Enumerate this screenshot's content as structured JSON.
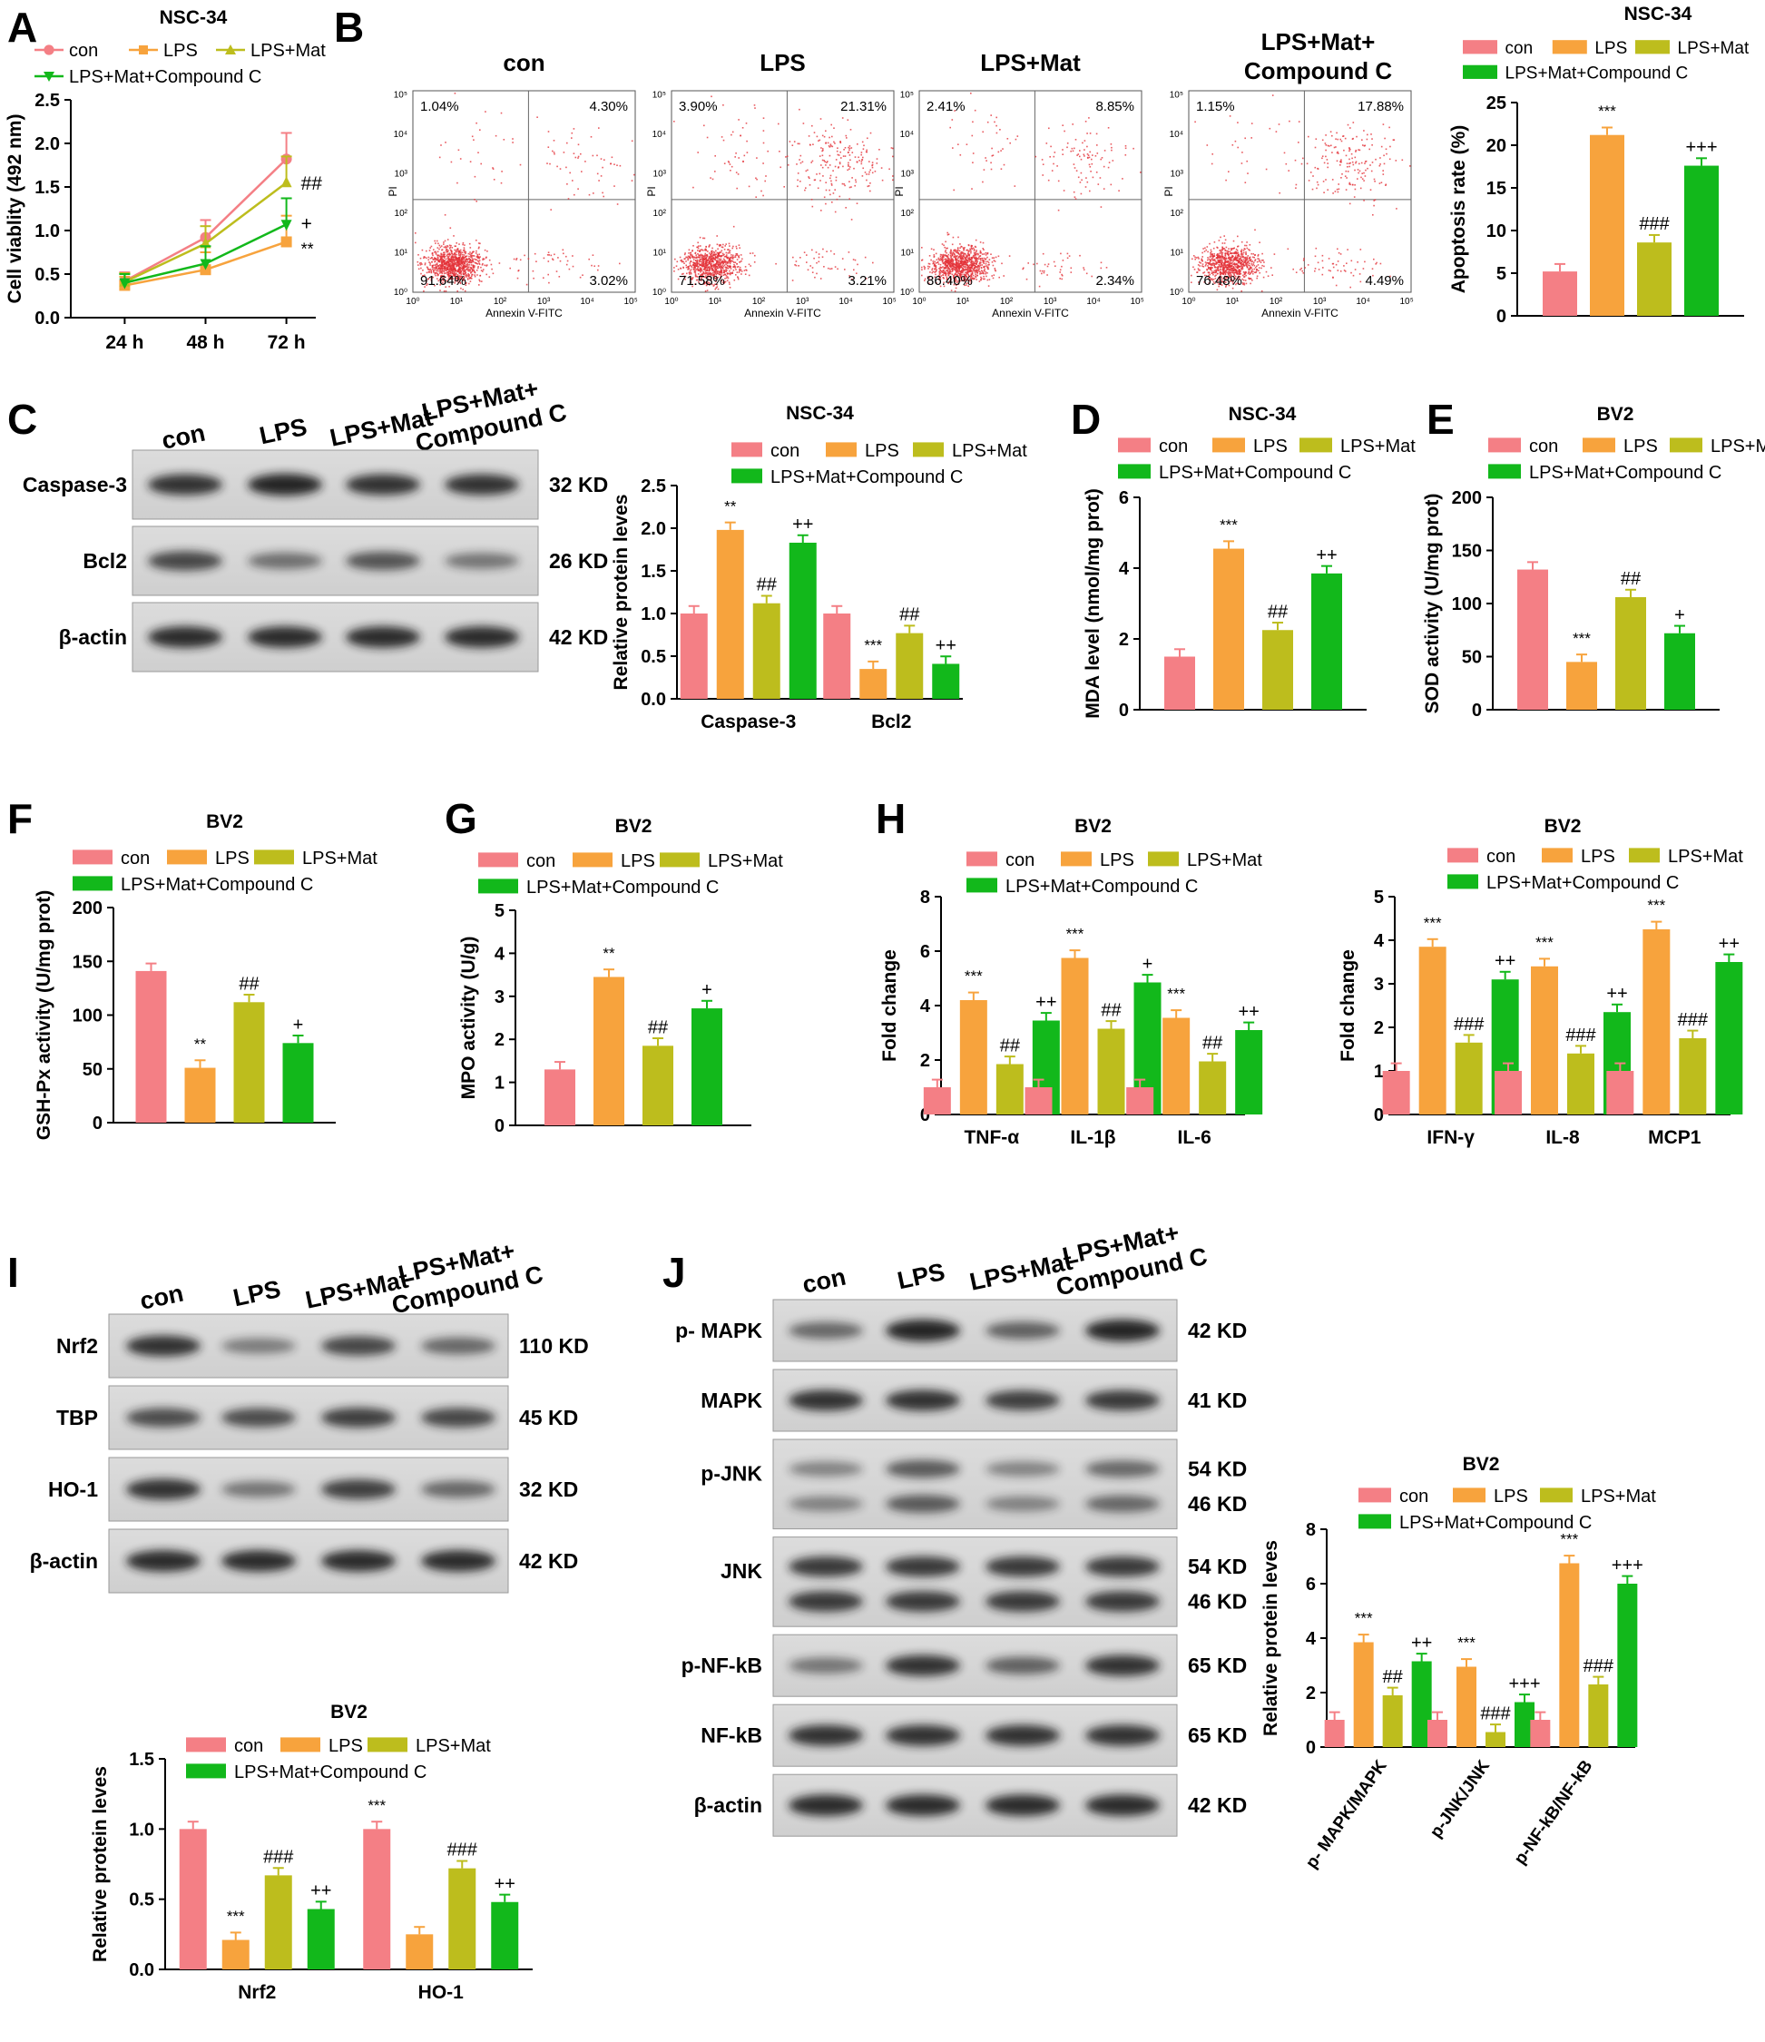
{
  "colors": {
    "con": "#f47f85",
    "LPS": "#f7a33d",
    "LPS+Mat": "#bdbd1d",
    "LPS+Mat+Compound C": "#12b81b",
    "err": "#f2b3b3"
  },
  "legend_labels": [
    "con",
    "LPS",
    "LPS+Mat",
    "LPS+Mat+Compound C"
  ],
  "panel_labels": [
    "A",
    "B",
    "C",
    "D",
    "E",
    "F",
    "G",
    "H",
    "I",
    "J"
  ],
  "flow": {
    "titles": [
      "con",
      "LPS",
      "LPS+Mat",
      "LPS+Mat+\nCompound C"
    ],
    "x_axis_label": "Annexin V-FITC",
    "y_axis_label": "PI",
    "tick_labels": [
      "10⁰",
      "10¹",
      "10²",
      "10³",
      "10⁴",
      "10⁵"
    ],
    "quadrants": [
      [
        "1.04%",
        "4.30%",
        "91.64%",
        "3.02%"
      ],
      [
        "3.90%",
        "21.31%",
        "71.58%",
        "3.21%"
      ],
      [
        "2.41%",
        "8.85%",
        "86.40%",
        "2.34%"
      ],
      [
        "1.15%",
        "17.88%",
        "76.48%",
        "4.49%"
      ]
    ]
  },
  "blots": {
    "C": {
      "lanes": [
        "con",
        "LPS",
        "LPS+Mat",
        "LPS+Mat+\nCompound C"
      ],
      "rows": [
        {
          "name": "Caspase-3",
          "kd": "32 KD"
        },
        {
          "name": "Bcl2",
          "kd": "26 KD"
        },
        {
          "name": "β-actin",
          "kd": "42 KD"
        }
      ]
    },
    "I": {
      "lanes": [
        "con",
        "LPS",
        "LPS+Mat",
        "LPS+Mat+\nCompound C"
      ],
      "rows": [
        {
          "name": "Nrf2",
          "kd": "110 KD"
        },
        {
          "name": "TBP",
          "kd": "45 KD"
        },
        {
          "name": "HO-1",
          "kd": "32 KD"
        },
        {
          "name": "β-actin",
          "kd": "42 KD"
        }
      ]
    },
    "J": {
      "lanes": [
        "con",
        "LPS",
        "LPS+Mat",
        "LPS+Mat+\nCompound C"
      ],
      "rows": [
        {
          "name": "p- MAPK",
          "kd": "42 KD"
        },
        {
          "name": "MAPK",
          "kd": "41 KD"
        },
        {
          "name": "p-JNK",
          "kd": "54 KD",
          "kd2": "46 KD"
        },
        {
          "name": "JNK",
          "kd": "54 KD",
          "kd2": "46 KD"
        },
        {
          "name": "p-NF-kB",
          "kd": "65 KD"
        },
        {
          "name": "NF-kB",
          "kd": "65 KD"
        },
        {
          "name": "β-actin",
          "kd": "42 KD"
        }
      ]
    }
  },
  "chart_data": [
    {
      "id": "A",
      "type": "line",
      "title": "NSC-34",
      "ylabel": "Cell viablity (492 nm)",
      "xlabel": "",
      "categories": [
        "24 h",
        "48 h",
        "72 h"
      ],
      "ylim": [
        0,
        2.5
      ],
      "yticks": [
        0,
        0.5,
        1.0,
        1.5,
        2.0,
        2.5
      ],
      "series": [
        {
          "name": "con",
          "values": [
            0.42,
            0.92,
            1.82
          ]
        },
        {
          "name": "LPS",
          "values": [
            0.37,
            0.55,
            0.87
          ]
        },
        {
          "name": "LPS+Mat",
          "values": [
            0.41,
            0.85,
            1.55
          ]
        },
        {
          "name": "LPS+Mat+Compound C",
          "values": [
            0.4,
            0.62,
            1.07
          ]
        }
      ],
      "annotations": [
        "##",
        "+",
        "**"
      ],
      "legend": "top-left"
    },
    {
      "id": "B",
      "type": "bar",
      "title": "NSC-34",
      "ylabel": "Apoptosis rate (%)",
      "xlabel": "",
      "categories": [
        ""
      ],
      "ylim": [
        0,
        25
      ],
      "yticks": [
        0,
        5,
        10,
        15,
        20,
        25
      ],
      "series": [
        {
          "name": "con",
          "values": [
            5.2
          ]
        },
        {
          "name": "LPS",
          "values": [
            21.2
          ]
        },
        {
          "name": "LPS+Mat",
          "values": [
            8.6
          ]
        },
        {
          "name": "LPS+Mat+Compound C",
          "values": [
            17.6
          ]
        }
      ],
      "annotations": [
        [
          "",
          "***",
          "###",
          "+++"
        ]
      ]
    },
    {
      "id": "C",
      "type": "bar",
      "title": "NSC-34",
      "ylabel": "Relative protein leves",
      "xlabel": "",
      "categories": [
        "Caspase-3",
        "Bcl2"
      ],
      "ylim": [
        0,
        2.5
      ],
      "yticks": [
        0,
        0.5,
        1.0,
        1.5,
        2.0,
        2.5
      ],
      "series": [
        {
          "name": "con",
          "values": [
            1.0,
            1.0
          ]
        },
        {
          "name": "LPS",
          "values": [
            1.98,
            0.35
          ]
        },
        {
          "name": "LPS+Mat",
          "values": [
            1.12,
            0.77
          ]
        },
        {
          "name": "LPS+Mat+Compound C",
          "values": [
            1.83,
            0.41
          ]
        }
      ],
      "annotations": [
        [
          "",
          "**",
          "##",
          "++"
        ],
        [
          "",
          "***",
          "##",
          "++"
        ]
      ]
    },
    {
      "id": "D",
      "type": "bar",
      "title": "NSC-34",
      "ylabel": "MDA level (nmol/mg prot)",
      "xlabel": "",
      "categories": [
        ""
      ],
      "ylim": [
        0,
        6
      ],
      "yticks": [
        0,
        2,
        4,
        6
      ],
      "series": [
        {
          "name": "con",
          "values": [
            1.5
          ]
        },
        {
          "name": "LPS",
          "values": [
            4.55
          ]
        },
        {
          "name": "LPS+Mat",
          "values": [
            2.25
          ]
        },
        {
          "name": "LPS+Mat+Compound C",
          "values": [
            3.85
          ]
        }
      ],
      "annotations": [
        [
          "",
          "***",
          "##",
          "++"
        ]
      ]
    },
    {
      "id": "E",
      "type": "bar",
      "title": "BV2",
      "ylabel": "SOD activity (U/mg prot)",
      "xlabel": "",
      "categories": [
        ""
      ],
      "ylim": [
        0,
        200
      ],
      "yticks": [
        0,
        50,
        100,
        150,
        200
      ],
      "series": [
        {
          "name": "con",
          "values": [
            132
          ]
        },
        {
          "name": "LPS",
          "values": [
            45
          ]
        },
        {
          "name": "LPS+Mat",
          "values": [
            106
          ]
        },
        {
          "name": "LPS+Mat+Compound C",
          "values": [
            72
          ]
        }
      ],
      "annotations": [
        [
          "",
          "***",
          "##",
          "+"
        ]
      ]
    },
    {
      "id": "F",
      "type": "bar",
      "title": "BV2",
      "ylabel": "GSH-Px activity (U/mg prot)",
      "xlabel": "",
      "categories": [
        ""
      ],
      "ylim": [
        0,
        200
      ],
      "yticks": [
        0,
        50,
        100,
        150,
        200
      ],
      "series": [
        {
          "name": "con",
          "values": [
            141
          ]
        },
        {
          "name": "LPS",
          "values": [
            51
          ]
        },
        {
          "name": "LPS+Mat",
          "values": [
            112
          ]
        },
        {
          "name": "LPS+Mat+Compound C",
          "values": [
            74
          ]
        }
      ],
      "annotations": [
        [
          "",
          "**",
          "##",
          "+"
        ]
      ]
    },
    {
      "id": "G",
      "type": "bar",
      "title": "BV2",
      "ylabel": "MPO activity (U/g)",
      "xlabel": "",
      "categories": [
        ""
      ],
      "ylim": [
        0,
        5
      ],
      "yticks": [
        0,
        1,
        2,
        3,
        4,
        5
      ],
      "series": [
        {
          "name": "con",
          "values": [
            1.3
          ]
        },
        {
          "name": "LPS",
          "values": [
            3.45
          ]
        },
        {
          "name": "LPS+Mat",
          "values": [
            1.85
          ]
        },
        {
          "name": "LPS+Mat+Compound C",
          "values": [
            2.72
          ]
        }
      ],
      "annotations": [
        [
          "",
          "**",
          "##",
          "+"
        ]
      ]
    },
    {
      "id": "H1",
      "type": "bar",
      "title": "BV2",
      "ylabel": "Fold change",
      "xlabel": "",
      "categories": [
        "TNF-α",
        "IL-1β",
        "IL-6"
      ],
      "ylim": [
        0,
        8
      ],
      "yticks": [
        0,
        2,
        4,
        6,
        8
      ],
      "series": [
        {
          "name": "con",
          "values": [
            1.0,
            1.0,
            1.0
          ]
        },
        {
          "name": "LPS",
          "values": [
            4.2,
            5.75,
            3.55
          ]
        },
        {
          "name": "LPS+Mat",
          "values": [
            1.85,
            3.15,
            1.95
          ]
        },
        {
          "name": "LPS+Mat+Compound C",
          "values": [
            3.45,
            4.85,
            3.1
          ]
        }
      ],
      "annotations": [
        [
          "",
          "***",
          "##",
          "++"
        ],
        [
          "",
          "***",
          "##",
          "+"
        ],
        [
          "",
          "***",
          "##",
          "++"
        ]
      ]
    },
    {
      "id": "H2",
      "type": "bar",
      "title": "BV2",
      "ylabel": "Fold change",
      "xlabel": "",
      "categories": [
        "IFN-γ",
        "IL-8",
        "MCP1"
      ],
      "ylim": [
        0,
        5
      ],
      "yticks": [
        0,
        1,
        2,
        3,
        4,
        5
      ],
      "series": [
        {
          "name": "con",
          "values": [
            1.0,
            1.0,
            1.0
          ]
        },
        {
          "name": "LPS",
          "values": [
            3.85,
            3.4,
            4.25
          ]
        },
        {
          "name": "LPS+Mat",
          "values": [
            1.65,
            1.4,
            1.75
          ]
        },
        {
          "name": "LPS+Mat+Compound C",
          "values": [
            3.1,
            2.35,
            3.5
          ]
        }
      ],
      "annotations": [
        [
          "",
          "***",
          "###",
          "++"
        ],
        [
          "",
          "***",
          "###",
          "++"
        ],
        [
          "",
          "***",
          "###",
          "++"
        ]
      ]
    },
    {
      "id": "I",
      "type": "bar",
      "title": "BV2",
      "ylabel": "Relative protein leves",
      "xlabel": "",
      "categories": [
        "Nrf2",
        "HO-1"
      ],
      "ylim": [
        0,
        1.5
      ],
      "yticks": [
        0,
        0.5,
        1.0,
        1.5
      ],
      "series": [
        {
          "name": "con",
          "values": [
            1.0,
            1.0
          ]
        },
        {
          "name": "LPS",
          "values": [
            0.21,
            0.25
          ]
        },
        {
          "name": "LPS+Mat",
          "values": [
            0.67,
            0.72
          ]
        },
        {
          "name": "LPS+Mat+Compound C",
          "values": [
            0.43,
            0.48
          ]
        }
      ],
      "annotations": [
        [
          "",
          "***",
          "###",
          "++"
        ],
        [
          "***",
          "",
          "###",
          "++"
        ]
      ]
    },
    {
      "id": "J",
      "type": "bar",
      "title": "BV2",
      "ylabel": "Relative protein leves",
      "xlabel": "",
      "categories": [
        "p- MAPK/MAPK",
        "p-JNK/JNK",
        "p-NF-kB/NF-kB"
      ],
      "ylim": [
        0,
        8
      ],
      "yticks": [
        0,
        2,
        4,
        6,
        8
      ],
      "series": [
        {
          "name": "con",
          "values": [
            1.0,
            1.0,
            1.0
          ]
        },
        {
          "name": "LPS",
          "values": [
            3.85,
            2.95,
            6.75
          ]
        },
        {
          "name": "LPS+Mat",
          "values": [
            1.9,
            0.55,
            2.3
          ]
        },
        {
          "name": "LPS+Mat+Compound C",
          "values": [
            3.15,
            1.65,
            6.0
          ]
        }
      ],
      "annotations": [
        [
          "",
          "***",
          "##",
          "++"
        ],
        [
          "",
          "***",
          "###",
          "+++"
        ],
        [
          "",
          "***",
          "###",
          "+++"
        ]
      ]
    }
  ]
}
